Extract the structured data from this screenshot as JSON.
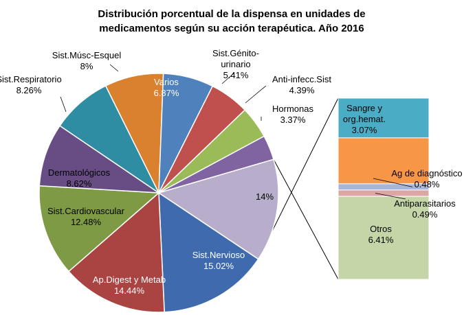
{
  "chart_data": {
    "type": "pie",
    "subtype": "pie-of-pie (bar of pie)",
    "title": [
      "Distribución porcentual de la dispensa en unidades de",
      "medicamentos según su acción terapéutica. Año 2016"
    ],
    "unit": "%",
    "slices": [
      {
        "name": "Sist.Nervioso",
        "value": 15.02,
        "label": [
          "Sist.Nervioso",
          "15.02%"
        ],
        "color": "#3F6BAE"
      },
      {
        "name": "Ap.Digest y Metab",
        "value": 14.44,
        "label": [
          "Ap.Digest y Metab",
          "14.44%"
        ],
        "color": "#A94442"
      },
      {
        "name": "Sist.Cardiovascular",
        "value": 12.48,
        "label": [
          "Sist.Cardiovascular",
          "12.48%"
        ],
        "color": "#7E9A44"
      },
      {
        "name": "Dermatológicos",
        "value": 8.62,
        "label": [
          "Dermatológicos",
          "8.62%"
        ],
        "color": "#674D84"
      },
      {
        "name": "Sist.Respiratorio",
        "value": 8.26,
        "label": [
          "Sist.Respiratorio",
          "8.26%"
        ],
        "color": "#2E8DA2"
      },
      {
        "name": "Sist.Músc-Esquel",
        "value": 8,
        "label": [
          "Sist.Músc-Esquel",
          "8%"
        ],
        "color": "#D9812E"
      },
      {
        "name": "Varios",
        "value": 6.87,
        "label": [
          "Varios",
          "6.87%"
        ],
        "color": "#4F81BD"
      },
      {
        "name": "Sist.Génito-urinario",
        "value": 5.41,
        "label": [
          "Sist.Génito-",
          "urinario",
          "5.41%"
        ],
        "color": "#C0504D"
      },
      {
        "name": "Anti-infecc.Sist",
        "value": 4.39,
        "label": [
          "Anti-infecc.Sist",
          "4.39%"
        ],
        "color": "#9BBB59"
      },
      {
        "name": "Hormonas",
        "value": 3.37,
        "label": [
          "Hormonas",
          "3.37%"
        ],
        "color": "#8064A2"
      },
      {
        "name": "Otros",
        "value": 14,
        "label": [
          "14%"
        ],
        "color": "#B8AECB"
      }
    ],
    "secondary_bar": [
      {
        "name": "Sangre y org.hemat.",
        "value": 3.07,
        "label": [
          "Sangre y",
          "org.hemat.",
          "3.07%"
        ],
        "color": "#4BACC6"
      },
      {
        "name": "Ag de diagnóstico",
        "value": 0.48,
        "label": [
          "Ag de diagnóstico",
          "0.48%"
        ],
        "color": "#A6B6DA"
      },
      {
        "name": "Antiparasitarios",
        "value": 0.49,
        "label": [
          "Antiparasitarios",
          "0.49%"
        ],
        "color": "#DCA6A5"
      },
      {
        "name": "Otros",
        "value": 6.41,
        "label": [
          "Otros",
          "6.41%"
        ],
        "color": "#C4D6A7"
      },
      {
        "name": "",
        "value": 3.55,
        "label": [],
        "color": "#F79646"
      }
    ],
    "bar_order_top_to_bottom": [
      "Sangre y org.hemat.",
      "",
      "Ag de diagnóstico",
      "Antiparasitarios",
      "Otros"
    ]
  }
}
